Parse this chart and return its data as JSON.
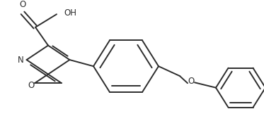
{
  "background_color": "#ffffff",
  "line_color": "#2d2d2d",
  "line_width": 1.4,
  "font_size": 8.5,
  "figsize": [
    3.73,
    1.82
  ],
  "dpi": 100,
  "xlim": [
    0,
    373
  ],
  "ylim": [
    0,
    182
  ]
}
